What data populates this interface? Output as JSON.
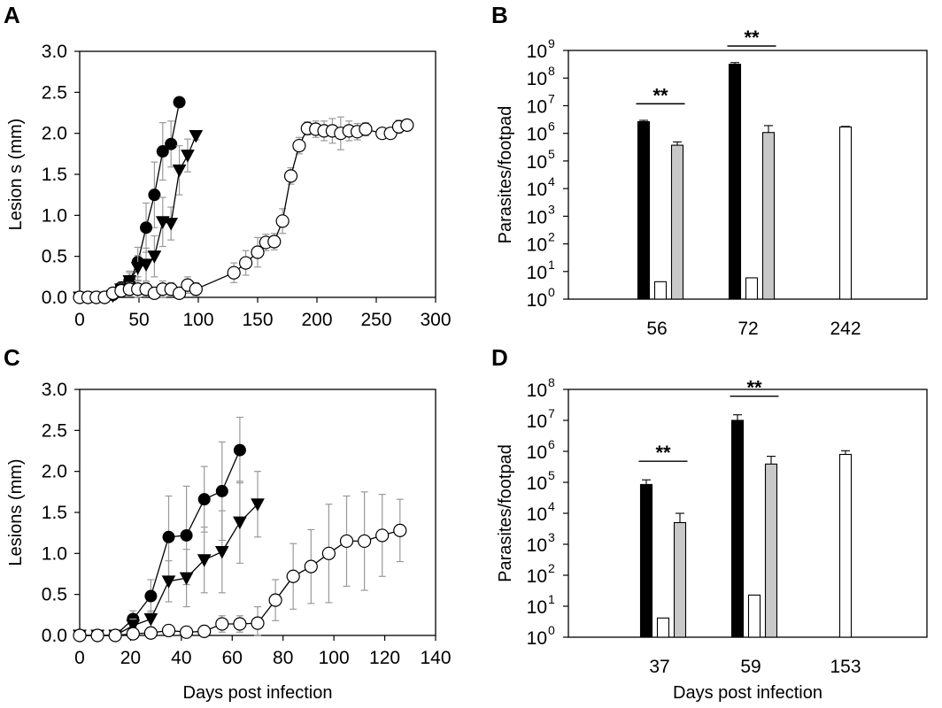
{
  "figure": {
    "panels": [
      "A",
      "B",
      "C",
      "D"
    ]
  },
  "chart_data": [
    {
      "panel": "A",
      "type": "line",
      "title": "",
      "xlabel": "",
      "ylabel": "Lesion s (mm)",
      "xlim": [
        0,
        300
      ],
      "ylim": [
        0,
        3.0
      ],
      "xticks": [
        0,
        50,
        100,
        150,
        200,
        250,
        300
      ],
      "yticks": [
        0.0,
        0.5,
        1.0,
        1.5,
        2.0,
        2.5,
        3.0
      ],
      "ytick_labels": [
        "0.0",
        "0.5",
        "1.0",
        "1.5",
        "2.0",
        "2.5",
        "3.0"
      ],
      "grid": false,
      "series": [
        {
          "marker": "circle-filled",
          "x": [
            0,
            7,
            14,
            21,
            28,
            35,
            42,
            49,
            56,
            63,
            70,
            77,
            84
          ],
          "y": [
            0,
            0,
            0,
            0,
            0.03,
            0.12,
            0.2,
            0.43,
            0.85,
            1.25,
            1.78,
            1.87,
            2.38
          ],
          "err": [
            0,
            0,
            0,
            0,
            0.04,
            0.07,
            0.12,
            0.18,
            0.3,
            0.4,
            0.35,
            0.28,
            0.06
          ]
        },
        {
          "marker": "triangle-down-filled",
          "x": [
            0,
            7,
            14,
            21,
            28,
            35,
            42,
            49,
            56,
            63,
            70,
            77,
            84,
            91,
            98
          ],
          "y": [
            0,
            0,
            0,
            0,
            0.02,
            0.1,
            0.2,
            0.36,
            0.4,
            0.5,
            0.92,
            0.9,
            1.55,
            1.73,
            1.97
          ],
          "err": [
            0,
            0,
            0,
            0,
            0.04,
            0.07,
            0.1,
            0.15,
            0.2,
            0.25,
            0.3,
            0.2,
            0.3,
            0.2,
            0.05
          ]
        },
        {
          "marker": "circle-open",
          "x": [
            0,
            7,
            14,
            21,
            28,
            35,
            42,
            49,
            56,
            63,
            70,
            77,
            84,
            91,
            98,
            130,
            140,
            150,
            157,
            164,
            171,
            178,
            185,
            192,
            199,
            206,
            213,
            220,
            227,
            234,
            241,
            255,
            262,
            269,
            276
          ],
          "y": [
            0,
            0,
            0,
            0,
            0.05,
            0.08,
            0.1,
            0.1,
            0.1,
            0.05,
            0.1,
            0.1,
            0.05,
            0.15,
            0.1,
            0.3,
            0.42,
            0.55,
            0.67,
            0.68,
            0.93,
            1.48,
            1.85,
            2.06,
            2.05,
            2.03,
            2.03,
            2.0,
            2.03,
            2.02,
            2.05,
            2.0,
            2.0,
            2.08,
            2.1
          ],
          "err": [
            0,
            0,
            0,
            0,
            0.05,
            0.06,
            0.08,
            0.1,
            0.08,
            0.06,
            0.1,
            0.08,
            0.06,
            0.1,
            0.08,
            0.12,
            0.15,
            0.18,
            0.1,
            0.1,
            0.15,
            0.1,
            0.1,
            0.08,
            0.1,
            0.12,
            0.15,
            0.2,
            0.12,
            0.1,
            0.08,
            0.05,
            0.05,
            0.08,
            0.05
          ]
        }
      ]
    },
    {
      "panel": "B",
      "type": "bar",
      "title": "",
      "xlabel": "",
      "ylabel": "Parasites/footpad",
      "log_scale": true,
      "ylim_exp": [
        0,
        9
      ],
      "yticks_exp": [
        0,
        1,
        2,
        3,
        4,
        5,
        6,
        7,
        8,
        9
      ],
      "tick_base": "10",
      "categories": [
        "56",
        "72",
        "242"
      ],
      "bars": [
        {
          "group": 0,
          "fill": "#000000",
          "log10": 6.42,
          "err": 0.05
        },
        {
          "group": 0,
          "fill": "#ffffff",
          "log10": 0.63,
          "err": 0
        },
        {
          "group": 0,
          "fill": "#c8c8c8",
          "log10": 5.57,
          "err": 0.12
        },
        {
          "group": 1,
          "fill": "#000000",
          "log10": 8.5,
          "err": 0.06
        },
        {
          "group": 1,
          "fill": "#ffffff",
          "log10": 0.77,
          "err": 0
        },
        {
          "group": 1,
          "fill": "#c8c8c8",
          "log10": 6.03,
          "err": 0.25
        },
        {
          "group": 2,
          "fill": "#ffffff",
          "log10": 6.23,
          "err": 0.02
        }
      ],
      "significance": [
        {
          "label": "**",
          "group": 0
        },
        {
          "label": "**",
          "group": 1
        }
      ]
    },
    {
      "panel": "C",
      "type": "line",
      "title": "",
      "xlabel": "Days post infection",
      "ylabel": "Lesions (mm)",
      "xlim": [
        0,
        140
      ],
      "ylim": [
        0,
        3.0
      ],
      "xticks": [
        0,
        20,
        40,
        60,
        80,
        100,
        120,
        140
      ],
      "yticks": [
        0.0,
        0.5,
        1.0,
        1.5,
        2.0,
        2.5,
        3.0
      ],
      "ytick_labels": [
        "0.0",
        "0.5",
        "1.0",
        "1.5",
        "2.0",
        "2.5",
        "3.0"
      ],
      "grid": false,
      "series": [
        {
          "marker": "circle-filled",
          "x": [
            0,
            7,
            14,
            21,
            28,
            35,
            42,
            49,
            56,
            63
          ],
          "y": [
            0,
            0,
            0,
            0.2,
            0.48,
            1.2,
            1.22,
            1.66,
            1.76,
            2.26
          ],
          "err": [
            0,
            0,
            0,
            0.1,
            0.2,
            0.5,
            0.6,
            0.4,
            0.6,
            0.4
          ]
        },
        {
          "marker": "triangle-down-filled",
          "x": [
            0,
            7,
            14,
            21,
            28,
            35,
            42,
            49,
            56,
            63,
            70
          ],
          "y": [
            0,
            0,
            0,
            0.12,
            0.2,
            0.66,
            0.7,
            0.92,
            1.02,
            1.38,
            1.6
          ],
          "err": [
            0,
            0,
            0,
            0.08,
            0.1,
            0.25,
            0.35,
            0.4,
            0.5,
            0.5,
            0.4
          ]
        },
        {
          "marker": "circle-open",
          "x": [
            0,
            7,
            14,
            21,
            28,
            35,
            42,
            49,
            56,
            63,
            70,
            77,
            84,
            91,
            98,
            105,
            112,
            119,
            126
          ],
          "y": [
            0,
            0,
            0,
            0.02,
            0.03,
            0.06,
            0.04,
            0.05,
            0.14,
            0.14,
            0.15,
            0.43,
            0.72,
            0.84,
            1.0,
            1.15,
            1.15,
            1.22,
            1.28
          ],
          "err": [
            0,
            0,
            0,
            0.03,
            0.04,
            0.05,
            0.05,
            0.06,
            0.1,
            0.1,
            0.2,
            0.25,
            0.4,
            0.45,
            0.6,
            0.55,
            0.6,
            0.5,
            0.38
          ]
        }
      ]
    },
    {
      "panel": "D",
      "type": "bar",
      "title": "",
      "xlabel": "Days post infection",
      "ylabel": "Parasites/footpad",
      "log_scale": true,
      "ylim_exp": [
        0,
        8
      ],
      "yticks_exp": [
        0,
        1,
        2,
        3,
        4,
        5,
        6,
        7,
        8
      ],
      "tick_base": "10",
      "categories": [
        "37",
        "59",
        "153"
      ],
      "bars": [
        {
          "group": 0,
          "fill": "#000000",
          "log10": 4.93,
          "err": 0.15
        },
        {
          "group": 0,
          "fill": "#ffffff",
          "log10": 0.62,
          "err": 0
        },
        {
          "group": 0,
          "fill": "#c8c8c8",
          "log10": 3.7,
          "err": 0.3
        },
        {
          "group": 1,
          "fill": "#000000",
          "log10": 7.0,
          "err": 0.18
        },
        {
          "group": 1,
          "fill": "#ffffff",
          "log10": 1.36,
          "err": 0
        },
        {
          "group": 1,
          "fill": "#c8c8c8",
          "log10": 5.59,
          "err": 0.25
        },
        {
          "group": 2,
          "fill": "#ffffff",
          "log10": 5.9,
          "err": 0.12
        }
      ],
      "significance": [
        {
          "label": "**",
          "group": 0
        },
        {
          "label": "**",
          "group": 1
        }
      ]
    }
  ]
}
